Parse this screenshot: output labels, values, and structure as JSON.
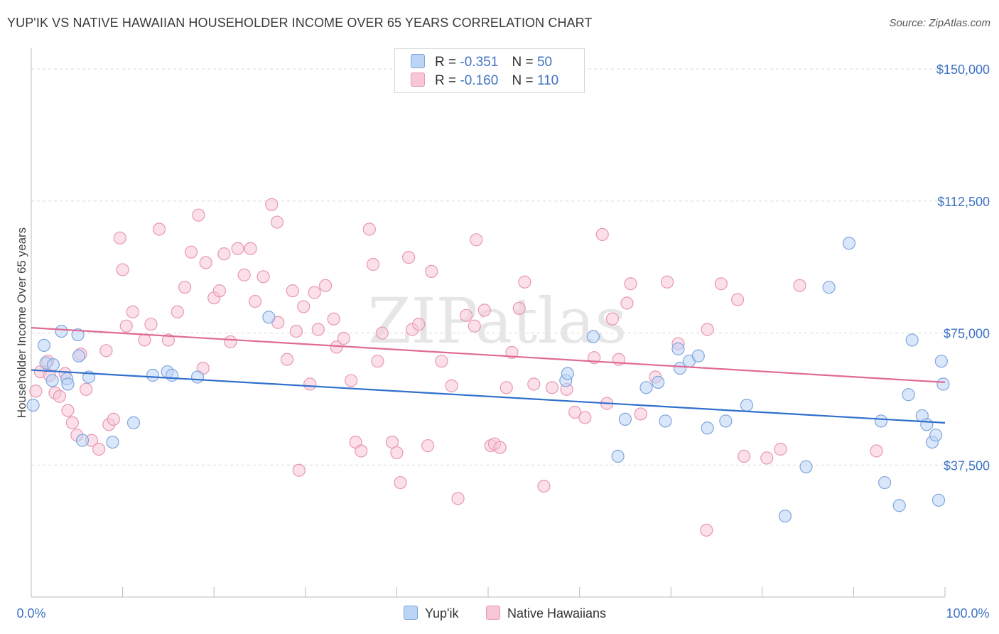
{
  "title": "YUP'IK VS NATIVE HAWAIIAN HOUSEHOLDER INCOME OVER 65 YEARS CORRELATION CHART",
  "source": "Source: ZipAtlas.com",
  "watermark": "ZIPatlas",
  "colors": {
    "blue_fill": "#bcd4f5",
    "blue_stroke": "#7fa6dd",
    "blue_line": "#2f6fcc",
    "pink_fill": "#f8c7d7",
    "pink_stroke": "#e897b3",
    "pink_line": "#e06a93",
    "tick_text": "#3f74c4",
    "grid": "#d9d9d9"
  },
  "legend": {
    "rows": [
      {
        "r_label": "R =",
        "r_value": "-0.351",
        "n_label": "N =",
        "n_value": "50",
        "color": "#bcd4f5",
        "stroke": "#7fa6dd"
      },
      {
        "r_label": "R =",
        "r_value": "-0.160",
        "n_label": "N =",
        "n_value": "110",
        "color": "#f8c7d7",
        "stroke": "#e897b3"
      }
    ]
  },
  "bottom_legend": [
    {
      "label": "Yup'ik",
      "color": "#bcd4f5",
      "stroke": "#7fa6dd"
    },
    {
      "label": "Native Hawaiians",
      "color": "#f8c7d7",
      "stroke": "#e897b3"
    }
  ],
  "chart_data": {
    "type": "scatter",
    "ylabel": "Householder Income Over 65 years",
    "xlim": [
      0,
      100
    ],
    "ylim": [
      0,
      157500
    ],
    "x_tick_labels": [
      "0.0%",
      "100.0%"
    ],
    "y_ticks": [
      37500,
      75000,
      112500,
      150000
    ],
    "y_tick_labels": [
      "$37,500",
      "$75,000",
      "$112,500",
      "$150,000"
    ],
    "grid": true,
    "series": [
      {
        "name": "Yup'ik",
        "trend": [
          [
            0,
            64500
          ],
          [
            100,
            49500
          ]
        ],
        "points": [
          [
            0.2,
            54500
          ],
          [
            1.4,
            71500
          ],
          [
            1.6,
            66500
          ],
          [
            2.3,
            61500
          ],
          [
            2.4,
            66000
          ],
          [
            3.3,
            75500
          ],
          [
            3.9,
            62000
          ],
          [
            4.0,
            60500
          ],
          [
            5.1,
            74500
          ],
          [
            5.2,
            68500
          ],
          [
            5.6,
            44500
          ],
          [
            6.3,
            62500
          ],
          [
            8.9,
            44000
          ],
          [
            11.2,
            49500
          ],
          [
            13.3,
            63000
          ],
          [
            14.9,
            64000
          ],
          [
            15.4,
            63000
          ],
          [
            18.2,
            62500
          ],
          [
            26.0,
            79500
          ],
          [
            58.5,
            61500
          ],
          [
            58.7,
            63500
          ],
          [
            61.5,
            74000
          ],
          [
            64.2,
            40000
          ],
          [
            65.0,
            50500
          ],
          [
            67.3,
            59500
          ],
          [
            68.6,
            61000
          ],
          [
            69.4,
            50000
          ],
          [
            70.8,
            70500
          ],
          [
            71.0,
            65000
          ],
          [
            72.0,
            67000
          ],
          [
            73.0,
            68500
          ],
          [
            74.0,
            48000
          ],
          [
            76.0,
            50000
          ],
          [
            78.3,
            54500
          ],
          [
            82.5,
            23000
          ],
          [
            84.8,
            37000
          ],
          [
            87.3,
            88000
          ],
          [
            89.5,
            100500
          ],
          [
            93.0,
            50000
          ],
          [
            93.4,
            32500
          ],
          [
            95.0,
            26000
          ],
          [
            96.0,
            57500
          ],
          [
            96.4,
            73000
          ],
          [
            97.5,
            51500
          ],
          [
            98.0,
            49000
          ],
          [
            98.6,
            44000
          ],
          [
            99.0,
            46000
          ],
          [
            99.3,
            27500
          ],
          [
            99.6,
            67000
          ],
          [
            99.8,
            60500
          ]
        ]
      },
      {
        "name": "Native Hawaiians",
        "trend": [
          [
            0,
            76500
          ],
          [
            100,
            61000
          ]
        ],
        "points": [
          [
            0.5,
            58500
          ],
          [
            1.0,
            64000
          ],
          [
            1.8,
            67000
          ],
          [
            2.0,
            63000
          ],
          [
            2.6,
            58000
          ],
          [
            3.1,
            57000
          ],
          [
            3.7,
            63500
          ],
          [
            4.0,
            53000
          ],
          [
            4.5,
            49500
          ],
          [
            5.0,
            46000
          ],
          [
            5.4,
            69000
          ],
          [
            6.0,
            59000
          ],
          [
            6.6,
            44500
          ],
          [
            7.4,
            42000
          ],
          [
            8.2,
            70000
          ],
          [
            8.5,
            49000
          ],
          [
            9.0,
            50500
          ],
          [
            9.7,
            102000
          ],
          [
            10.0,
            93000
          ],
          [
            10.4,
            77000
          ],
          [
            11.1,
            81000
          ],
          [
            12.4,
            73000
          ],
          [
            13.1,
            77500
          ],
          [
            14.0,
            104500
          ],
          [
            15.0,
            73000
          ],
          [
            16.0,
            81000
          ],
          [
            16.8,
            88000
          ],
          [
            17.5,
            98000
          ],
          [
            18.3,
            108500
          ],
          [
            18.8,
            65000
          ],
          [
            19.1,
            95000
          ],
          [
            20.0,
            85000
          ],
          [
            20.6,
            87000
          ],
          [
            21.1,
            97500
          ],
          [
            21.8,
            72500
          ],
          [
            22.6,
            99000
          ],
          [
            23.3,
            91500
          ],
          [
            24.0,
            99000
          ],
          [
            24.5,
            84000
          ],
          [
            25.4,
            91000
          ],
          [
            26.3,
            111500
          ],
          [
            26.9,
            106500
          ],
          [
            27.0,
            78000
          ],
          [
            28.0,
            67500
          ],
          [
            28.6,
            87000
          ],
          [
            29.0,
            75500
          ],
          [
            29.3,
            36000
          ],
          [
            29.8,
            82500
          ],
          [
            30.5,
            60500
          ],
          [
            31.0,
            86500
          ],
          [
            31.4,
            76000
          ],
          [
            32.2,
            88500
          ],
          [
            33.1,
            79000
          ],
          [
            33.4,
            71000
          ],
          [
            34.2,
            73500
          ],
          [
            35.0,
            61500
          ],
          [
            35.5,
            44000
          ],
          [
            36.1,
            41500
          ],
          [
            37.0,
            104500
          ],
          [
            37.4,
            94500
          ],
          [
            37.9,
            67000
          ],
          [
            38.4,
            75000
          ],
          [
            39.5,
            44000
          ],
          [
            40.0,
            41000
          ],
          [
            40.4,
            32500
          ],
          [
            41.3,
            96500
          ],
          [
            41.7,
            76000
          ],
          [
            42.4,
            77500
          ],
          [
            43.4,
            43000
          ],
          [
            43.8,
            92500
          ],
          [
            44.9,
            67000
          ],
          [
            46.0,
            60000
          ],
          [
            46.7,
            28000
          ],
          [
            47.6,
            80000
          ],
          [
            48.5,
            77000
          ],
          [
            48.7,
            101500
          ],
          [
            49.6,
            81500
          ],
          [
            50.3,
            43000
          ],
          [
            50.7,
            43500
          ],
          [
            51.3,
            42500
          ],
          [
            52.0,
            59500
          ],
          [
            52.6,
            69500
          ],
          [
            53.4,
            82000
          ],
          [
            54.0,
            89500
          ],
          [
            55.0,
            60500
          ],
          [
            56.1,
            31500
          ],
          [
            57.0,
            59500
          ],
          [
            58.6,
            59000
          ],
          [
            59.5,
            52500
          ],
          [
            60.6,
            51000
          ],
          [
            61.6,
            68000
          ],
          [
            62.5,
            103000
          ],
          [
            63.0,
            55000
          ],
          [
            63.6,
            79000
          ],
          [
            64.3,
            67500
          ],
          [
            65.2,
            83500
          ],
          [
            65.6,
            89000
          ],
          [
            66.7,
            52000
          ],
          [
            68.3,
            62500
          ],
          [
            69.6,
            89500
          ],
          [
            70.8,
            72000
          ],
          [
            73.9,
            19000
          ],
          [
            74.0,
            76000
          ],
          [
            75.5,
            89000
          ],
          [
            77.3,
            84500
          ],
          [
            78.0,
            40000
          ],
          [
            80.5,
            39500
          ],
          [
            82.0,
            42000
          ],
          [
            84.1,
            88500
          ],
          [
            92.5,
            41500
          ]
        ]
      }
    ]
  }
}
